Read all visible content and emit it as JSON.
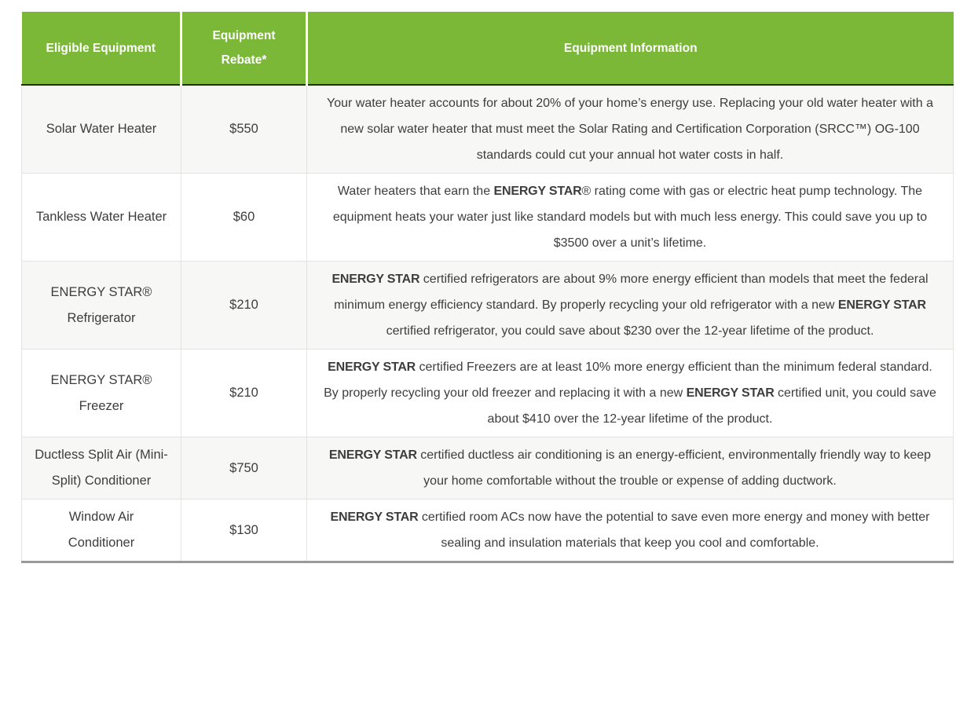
{
  "colors": {
    "header_bg": "#7bb837",
    "header_text": "#ffffff",
    "header_divider": "#ffffff",
    "header_bottom_border": "#202d04",
    "row_alt_bg": "#f7f7f6",
    "row_bg": "#ffffff",
    "cell_border": "#e3e3e3",
    "table_bottom_border": "#9a9a9a",
    "body_text": "#3d3d3d",
    "page_bg": "#ffffff"
  },
  "table": {
    "columns": [
      {
        "id": "equipment",
        "label": "Eligible Equipment"
      },
      {
        "id": "rebate",
        "label": "Equipment Rebate*"
      },
      {
        "id": "info",
        "label": "Equipment Information"
      }
    ],
    "bold_phrase": "ENERGY STAR",
    "rows": [
      {
        "equipment": "Solar Water Heater",
        "rebate": "$550",
        "info": "Your water heater accounts for about 20% of your home’s energy use. Replacing your old water heater with a new solar water heater that must meet the Solar Rating and Certification Corporation (SRCC™) OG-100 standards could cut your annual hot water costs in half."
      },
      {
        "equipment": "Tankless Water Heater",
        "rebate": "$60",
        "info": "Water heaters that earn the ENERGY STAR® rating come with gas or electric heat pump technology. The equipment heats your water just like standard models but with much less energy. This could save you up to $3500 over a unit’s lifetime."
      },
      {
        "equipment": "ENERGY STAR® Refrigerator",
        "rebate": "$210",
        "info": "ENERGY STAR certified refrigerators are about 9% more energy efficient than models that meet the federal minimum energy efficiency standard. By properly recycling your old refrigerator with a new ENERGY STAR certified refrigerator, you could save about $230 over the 12-year lifetime of the product."
      },
      {
        "equipment": "ENERGY STAR® Freezer",
        "rebate": "$210",
        "info": "ENERGY STAR certified Freezers are at least 10% more energy efficient than the minimum federal standard. By properly recycling your old freezer and replacing it with a new ENERGY STAR certified unit, you could save about $410 over the 12-year lifetime of the product."
      },
      {
        "equipment": "Ductless Split Air (Mini-Split) Conditioner",
        "rebate": "$750",
        "info": "ENERGY STAR certified ductless air conditioning is an energy-efficient, environmentally friendly way to keep your home comfortable without the trouble or expense of adding ductwork."
      },
      {
        "equipment": "Window Air Conditioner",
        "rebate": "$130",
        "info": "ENERGY STAR certified room ACs now have the potential to save even more energy and money with better sealing and insulation materials that keep you cool and comfortable."
      }
    ]
  }
}
